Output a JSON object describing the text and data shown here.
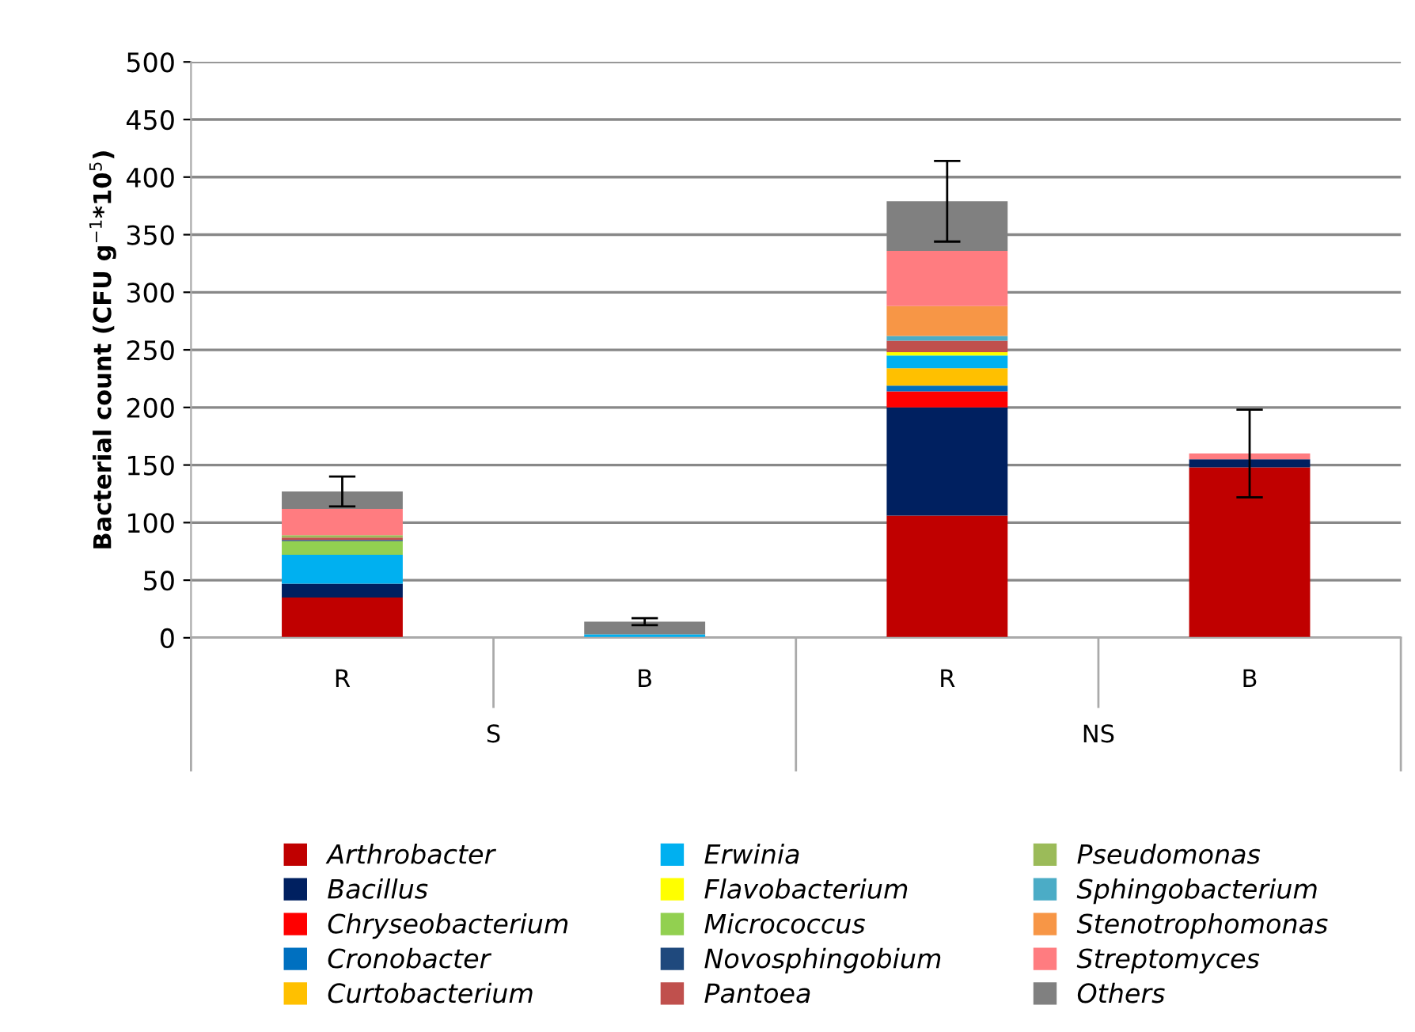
{
  "chart_data": {
    "type": "bar",
    "stacked": true,
    "ylabel": "Bacterial count (CFU g$^{−1}$*10$^{5}$)",
    "categories": [
      "R",
      "B",
      "R",
      "B"
    ],
    "annotations": [
      "S",
      "NS"
    ],
    "ylim": [
      0,
      500
    ],
    "yticks": [
      0,
      50,
      100,
      150,
      200,
      250,
      300,
      350,
      400,
      450,
      500
    ],
    "grid": "y",
    "legend": "bottom",
    "series": [
      {
        "name": "Arthrobacter",
        "color": "#c00000",
        "values": [
          35,
          0,
          106,
          148
        ]
      },
      {
        "name": "Bacillus",
        "color": "#002060",
        "values": [
          12,
          0,
          94,
          7
        ]
      },
      {
        "name": "Chryseobacterium",
        "color": "#ff0000",
        "values": [
          0,
          0,
          14,
          0
        ]
      },
      {
        "name": "Cronobacter",
        "color": "#0070c0",
        "values": [
          0,
          0,
          5,
          0
        ]
      },
      {
        "name": "Curtobacterium",
        "color": "#ffc000",
        "values": [
          0,
          0,
          15,
          0
        ]
      },
      {
        "name": "Erwinia",
        "color": "#00b0f0",
        "values": [
          25,
          3,
          11,
          0
        ]
      },
      {
        "name": "Flavobacterium",
        "color": "#ffff00",
        "values": [
          0,
          0,
          3,
          0
        ]
      },
      {
        "name": "Micrococcus",
        "color": "#92d050",
        "values": [
          12,
          0,
          0,
          0
        ]
      },
      {
        "name": "Novosphingobium",
        "color": "#1f497d",
        "values": [
          1,
          0,
          0,
          0
        ]
      },
      {
        "name": "Pantoea",
        "color": "#c0504d",
        "values": [
          2,
          0,
          10,
          0
        ]
      },
      {
        "name": "Pseudomonas",
        "color": "#9bbb59",
        "values": [
          2,
          0,
          0,
          0
        ]
      },
      {
        "name": "Sphingobacterium",
        "color": "#4bacc6",
        "values": [
          0,
          0,
          4,
          0
        ]
      },
      {
        "name": "Stenotrophomonas",
        "color": "#f79646",
        "values": [
          0,
          0,
          26,
          0
        ]
      },
      {
        "name": "Streptomyces",
        "color": "#ff7c80",
        "values": [
          23,
          0,
          48,
          5
        ]
      },
      {
        "name": "Others",
        "color": "#808080",
        "values": [
          15,
          11,
          43,
          0
        ],
        "errors": [
          13,
          3,
          35,
          38
        ]
      }
    ]
  }
}
